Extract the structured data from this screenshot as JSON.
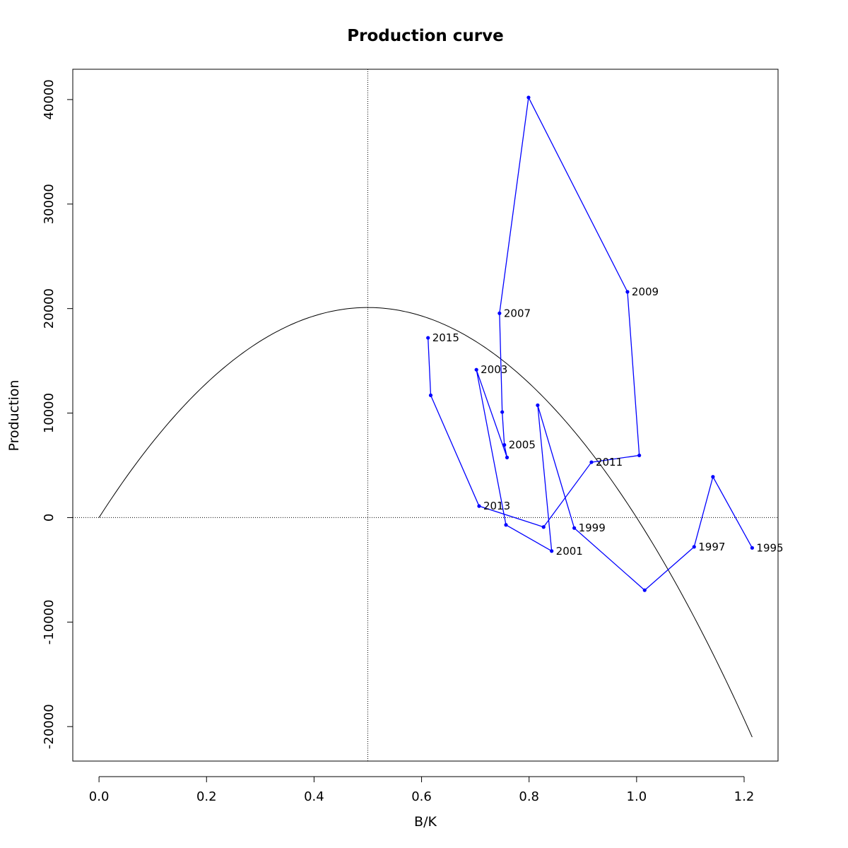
{
  "chart_data": {
    "type": "line",
    "title": "Production curve",
    "xlabel": "B/K",
    "ylabel": "Production",
    "xlim": [
      -0.0488,
      1.2631
    ],
    "ylim": [
      -23300,
      42900
    ],
    "x_ticks": [
      0.0,
      0.2,
      0.4,
      0.6,
      0.8,
      1.0,
      1.2
    ],
    "x_tick_labels": [
      "0.0",
      "0.2",
      "0.4",
      "0.6",
      "0.8",
      "1.0",
      "1.2"
    ],
    "y_ticks": [
      -20000,
      -10000,
      0,
      10000,
      20000,
      30000,
      40000
    ],
    "y_tick_labels": [
      "-20000",
      "-10000",
      "0",
      "10000",
      "20000",
      "30000",
      "40000"
    ],
    "reference_lines": {
      "vertical_x": 0.5,
      "horizontal_y": 0
    },
    "production_curve": {
      "r": 0.0,
      "msy": 20100,
      "bmsy_ratio": 0.5,
      "x_range": [
        0.0,
        1.215
      ],
      "color": "#000000"
    },
    "series": [
      {
        "color": "#0000ff",
        "points": [
          {
            "x": 1.215,
            "y": -2900,
            "label": "1995"
          },
          {
            "x": 1.142,
            "y": 3900,
            "label": ""
          },
          {
            "x": 1.107,
            "y": -2800,
            "label": "1997"
          },
          {
            "x": 1.015,
            "y": -6950,
            "label": ""
          },
          {
            "x": 0.884,
            "y": -1000,
            "label": "1999"
          },
          {
            "x": 0.816,
            "y": 10750,
            "label": ""
          },
          {
            "x": 0.842,
            "y": -3200,
            "label": "2001"
          },
          {
            "x": 0.757,
            "y": -700,
            "label": ""
          },
          {
            "x": 0.702,
            "y": 14150,
            "label": "2003"
          },
          {
            "x": 0.759,
            "y": 5750,
            "label": ""
          },
          {
            "x": 0.754,
            "y": 6950,
            "label": "2005"
          },
          {
            "x": 0.75,
            "y": 10100,
            "label": ""
          },
          {
            "x": 0.745,
            "y": 19550,
            "label": "2007"
          },
          {
            "x": 0.799,
            "y": 40200,
            "label": ""
          },
          {
            "x": 0.983,
            "y": 21600,
            "label": "2009"
          },
          {
            "x": 1.005,
            "y": 5950,
            "label": ""
          },
          {
            "x": 0.916,
            "y": 5300,
            "label": "2011"
          },
          {
            "x": 0.827,
            "y": -900,
            "label": ""
          },
          {
            "x": 0.707,
            "y": 1100,
            "label": "2013"
          },
          {
            "x": 0.617,
            "y": 11700,
            "label": ""
          },
          {
            "x": 0.612,
            "y": 17200,
            "label": "2015"
          }
        ]
      }
    ]
  }
}
